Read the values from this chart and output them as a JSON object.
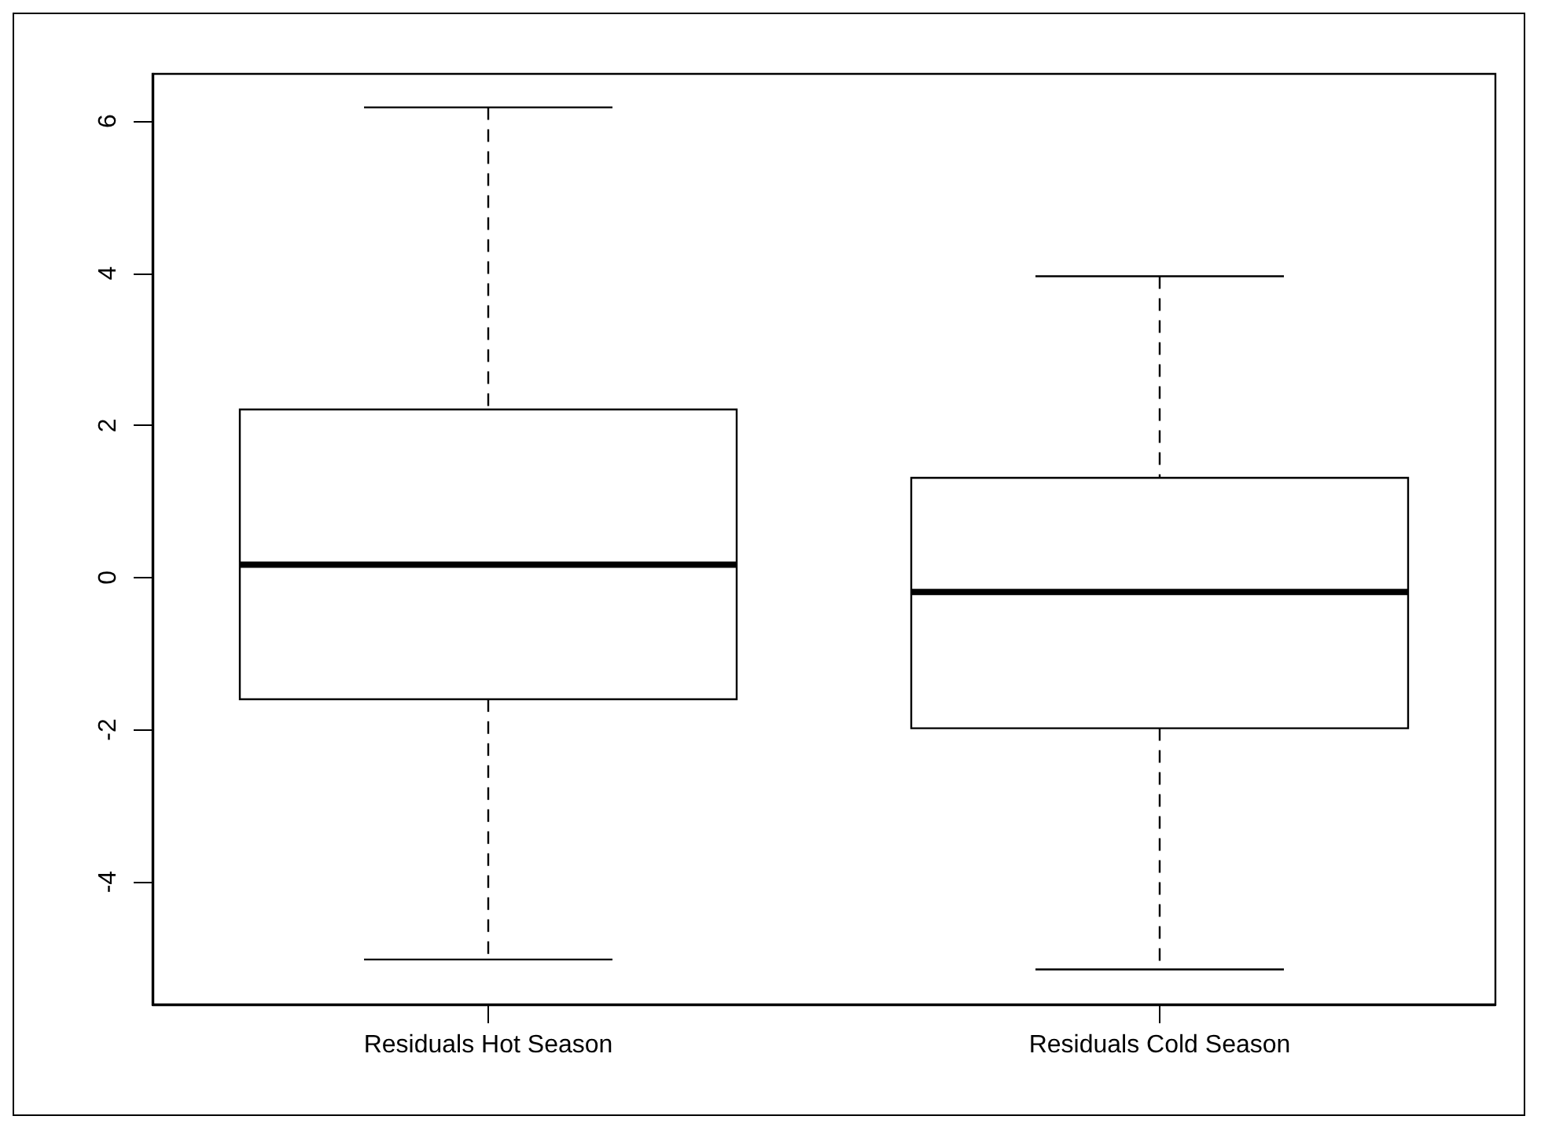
{
  "chart_data": {
    "type": "box",
    "categories": [
      "Residuals Hot Season",
      "Residuals Cold Season"
    ],
    "boxes": [
      {
        "low": -5.02,
        "q1": -1.6,
        "median": 0.17,
        "q3": 2.21,
        "high": 6.18
      },
      {
        "low": -5.15,
        "q1": -1.98,
        "median": -0.19,
        "q3": 1.31,
        "high": 3.96
      }
    ],
    "color": "#000000",
    "ylim": [
      -5.61,
      6.62
    ],
    "yticks": [
      -4,
      -2,
      0,
      2,
      4,
      6
    ],
    "grid": false
  }
}
